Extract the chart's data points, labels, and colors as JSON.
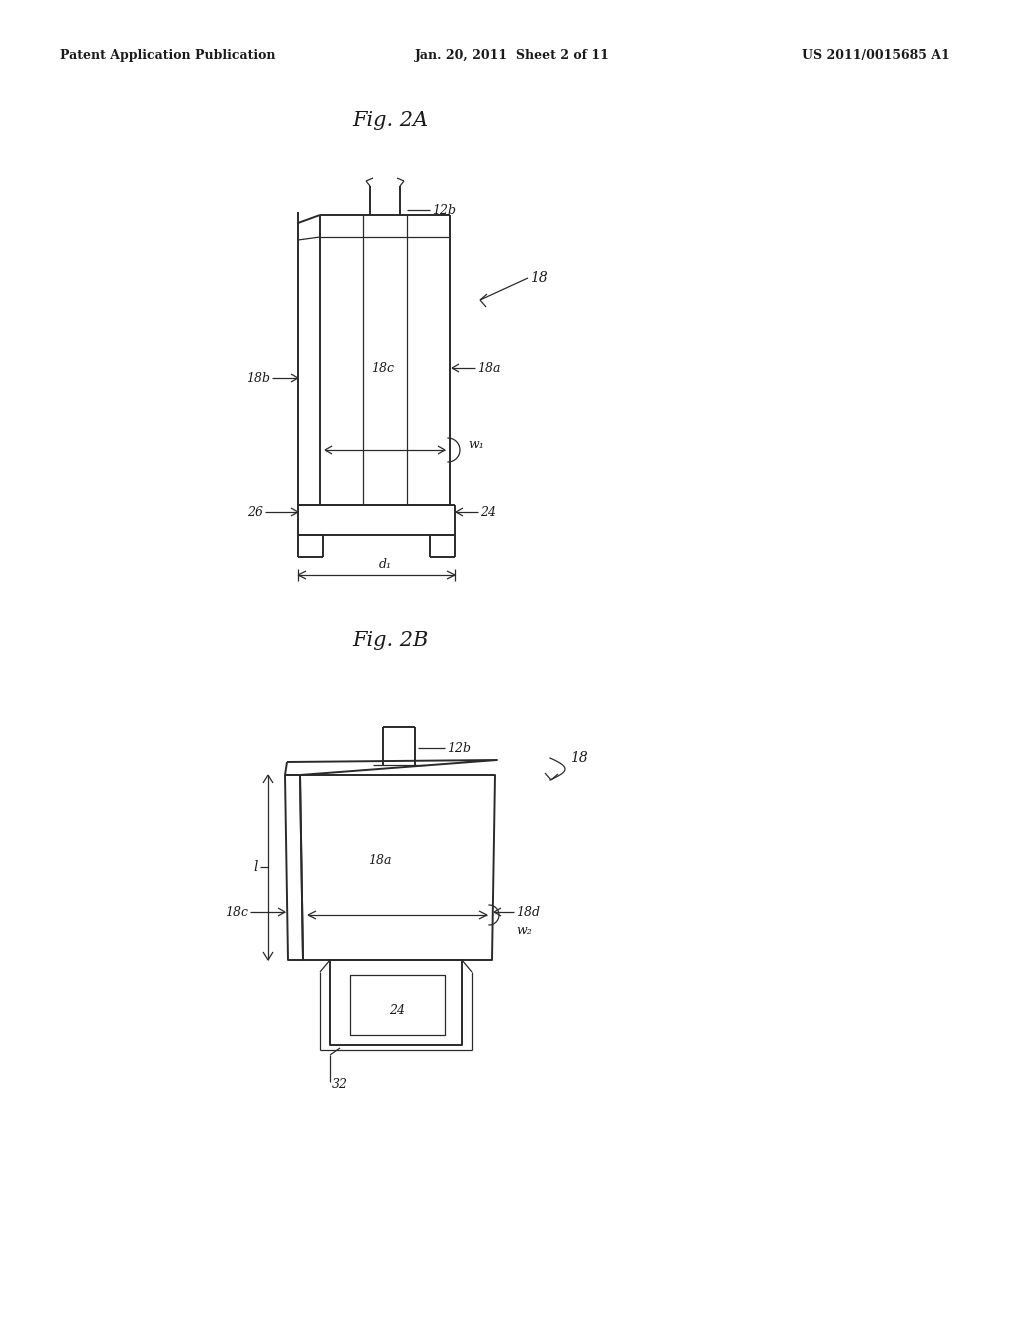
{
  "bg_color": "#ffffff",
  "line_color": "#2a2a2a",
  "text_color": "#1a1a1a",
  "header_left": "Patent Application Publication",
  "header_center": "Jan. 20, 2011  Sheet 2 of 11",
  "header_right": "US 2011/0015685 A1",
  "fig2a_title": "Fig. 2A",
  "fig2b_title": "Fig. 2B"
}
